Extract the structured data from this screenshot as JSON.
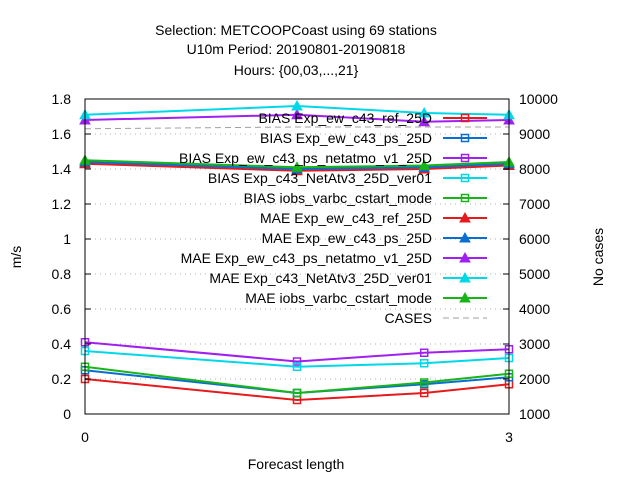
{
  "chart_data": {
    "type": "line",
    "title": [
      "Selection: METCOOPCoast using    69 stations",
      "U10m   Period: 20190801-20190818",
      "Hours: {00,03,...,21}"
    ],
    "xlabel": "Forecast length",
    "ylabel": "m/s",
    "y2label": "No cases",
    "x": [
      0,
      1.5,
      2.4,
      3
    ],
    "xticks": [
      0,
      3
    ],
    "xlim": [
      0,
      3
    ],
    "ylim": [
      0,
      1.8
    ],
    "yticks": [
      0,
      0.2,
      0.4,
      0.6,
      0.8,
      1,
      1.2,
      1.4,
      1.6,
      1.8
    ],
    "y2lim": [
      1000,
      10000
    ],
    "y2ticks": [
      1000,
      2000,
      3000,
      4000,
      5000,
      6000,
      7000,
      8000,
      9000,
      10000
    ],
    "grid": true,
    "legend_position": "top-right",
    "series": [
      {
        "name": "BIAS Exp_ew_c43_ref_25D",
        "color": "#e41a1c",
        "marker": "square",
        "axis": "y",
        "values": [
          0.2,
          0.08,
          0.12,
          0.17
        ]
      },
      {
        "name": "BIAS Exp_ew_c43_ps_25D",
        "color": "#0a6ed0",
        "marker": "square",
        "axis": "y",
        "values": [
          0.25,
          0.12,
          0.17,
          0.21
        ]
      },
      {
        "name": "BIAS Exp_ew_c43_ps_netatmo_v1_25D",
        "color": "#a020f0",
        "marker": "square",
        "axis": "y",
        "values": [
          0.41,
          0.3,
          0.35,
          0.37
        ]
      },
      {
        "name": "BIAS Exp_c43_NetAtv3_25D_ver01",
        "color": "#00d8e8",
        "marker": "square",
        "axis": "y",
        "values": [
          0.36,
          0.27,
          0.29,
          0.32
        ]
      },
      {
        "name": "BIAS iobs_varbc_cstart_mode",
        "color": "#19b419",
        "marker": "square",
        "axis": "y",
        "values": [
          0.27,
          0.12,
          0.18,
          0.23
        ]
      },
      {
        "name": "MAE Exp_ew_c43_ref_25D",
        "color": "#e41a1c",
        "marker": "triangle",
        "axis": "y",
        "values": [
          1.43,
          1.39,
          1.4,
          1.42
        ]
      },
      {
        "name": "MAE Exp_ew_c43_ps_25D",
        "color": "#0a6ed0",
        "marker": "triangle",
        "axis": "y",
        "values": [
          1.44,
          1.4,
          1.41,
          1.43
        ]
      },
      {
        "name": "MAE Exp_ew_c43_ps_netatmo_v1_25D",
        "color": "#a020f0",
        "marker": "triangle",
        "axis": "y",
        "values": [
          1.68,
          1.71,
          1.67,
          1.68
        ]
      },
      {
        "name": "MAE Exp_c43_NetAtv3_25D_ver01",
        "color": "#00d8e8",
        "marker": "triangle",
        "axis": "y",
        "values": [
          1.71,
          1.76,
          1.72,
          1.71
        ]
      },
      {
        "name": "MAE iobs_varbc_cstart_mode",
        "color": "#19b419",
        "marker": "triangle",
        "axis": "y",
        "values": [
          1.45,
          1.41,
          1.42,
          1.44
        ]
      },
      {
        "name": "CASES",
        "color": "#a0a0a0",
        "marker": "none",
        "dashed": true,
        "axis": "y2",
        "values": [
          9150,
          9200,
          9200,
          9200
        ]
      }
    ]
  }
}
